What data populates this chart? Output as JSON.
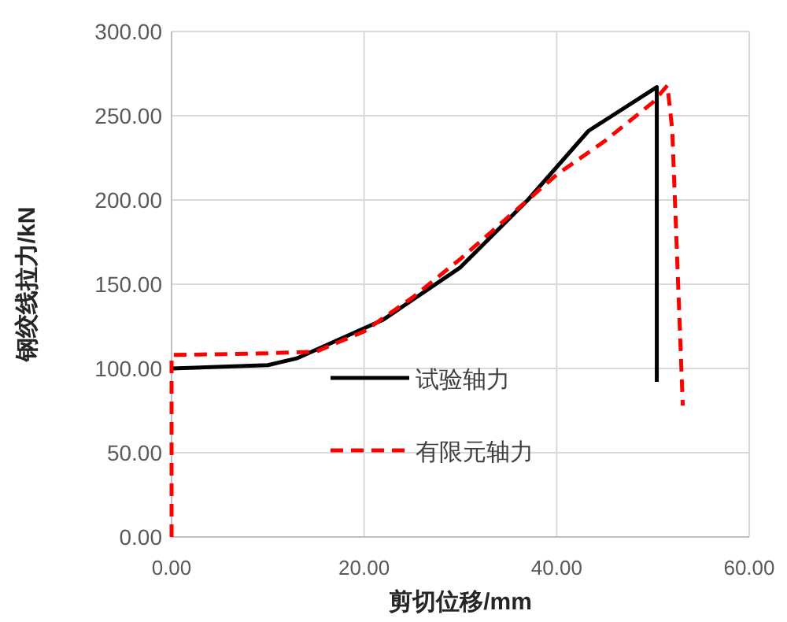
{
  "chart_data": {
    "type": "line",
    "xlabel": "剪切位移/mm",
    "ylabel": "钢绞线拉力/kN",
    "xlim": [
      0,
      60
    ],
    "ylim": [
      0,
      300
    ],
    "xticks": [
      {
        "value": 0,
        "label": "0.00"
      },
      {
        "value": 20,
        "label": "20.00"
      },
      {
        "value": 40,
        "label": "40.00"
      },
      {
        "value": 60,
        "label": "60.00"
      }
    ],
    "yticks": [
      {
        "value": 0,
        "label": "0.00"
      },
      {
        "value": 50,
        "label": "50.00"
      },
      {
        "value": 100,
        "label": "100.00"
      },
      {
        "value": 150,
        "label": "150.00"
      },
      {
        "value": 200,
        "label": "200.00"
      },
      {
        "value": 250,
        "label": "250.00"
      },
      {
        "value": 300,
        "label": "300.00"
      }
    ],
    "grid": true,
    "legend": "center",
    "series": [
      {
        "name": "试验轴力",
        "color": "#000000",
        "line_style": "solid",
        "x": [
          0,
          10,
          13,
          22,
          30,
          37,
          43.3,
          50.4,
          50.4
        ],
        "values": [
          100,
          102,
          106,
          129,
          160,
          200,
          241,
          267,
          92
        ]
      },
      {
        "name": "有限元轴力",
        "color": "#ff0000",
        "line_style": "dashed",
        "x": [
          0,
          0,
          10,
          15,
          20,
          25,
          30,
          36,
          40,
          45,
          50,
          51.5,
          52,
          53.1
        ],
        "values": [
          0,
          108,
          109,
          110,
          122,
          142,
          165,
          195,
          215,
          235,
          258,
          268,
          242,
          78
        ]
      }
    ]
  }
}
